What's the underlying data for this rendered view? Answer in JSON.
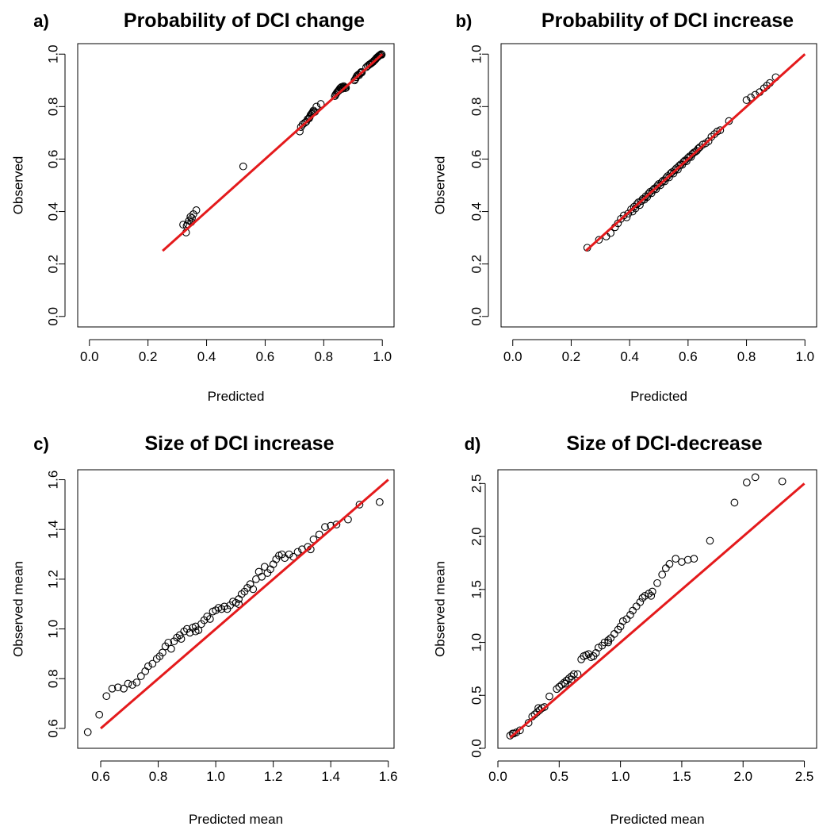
{
  "chart_data": [
    {
      "id": "a",
      "letter": "a)",
      "type": "scatter",
      "title": "Probability of DCI change",
      "xlabel": "Predicted",
      "ylabel": "Observed",
      "xlim": [
        -0.04,
        1.04
      ],
      "ylim": [
        -0.04,
        1.04
      ],
      "xticks": [
        "0.0",
        "0.2",
        "0.4",
        "0.6",
        "0.8",
        "1.0"
      ],
      "yticks": [
        "0.0",
        "0.2",
        "0.4",
        "0.6",
        "0.8",
        "1.0"
      ],
      "xtick_values": [
        0,
        0.2,
        0.4,
        0.6,
        0.8,
        1.0
      ],
      "ytick_values": [
        0,
        0.2,
        0.4,
        0.6,
        0.8,
        1.0
      ],
      "reference_line": {
        "from": [
          0.25,
          0.25
        ],
        "to": [
          1.0,
          1.0
        ],
        "color": "#e41a1c"
      },
      "points": [
        [
          0.32,
          0.35
        ],
        [
          0.33,
          0.32
        ],
        [
          0.332,
          0.345
        ],
        [
          0.335,
          0.352
        ],
        [
          0.34,
          0.365
        ],
        [
          0.345,
          0.38
        ],
        [
          0.35,
          0.375
        ],
        [
          0.355,
          0.39
        ],
        [
          0.348,
          0.36
        ],
        [
          0.365,
          0.405
        ],
        [
          0.525,
          0.572
        ],
        [
          0.718,
          0.705
        ],
        [
          0.722,
          0.722
        ],
        [
          0.728,
          0.732
        ],
        [
          0.735,
          0.738
        ],
        [
          0.74,
          0.742
        ],
        [
          0.745,
          0.752
        ],
        [
          0.75,
          0.755
        ],
        [
          0.752,
          0.76
        ],
        [
          0.755,
          0.768
        ],
        [
          0.758,
          0.772
        ],
        [
          0.76,
          0.775
        ],
        [
          0.763,
          0.78
        ],
        [
          0.765,
          0.785
        ],
        [
          0.77,
          0.78
        ],
        [
          0.775,
          0.8
        ],
        [
          0.79,
          0.81
        ],
        [
          0.838,
          0.84
        ],
        [
          0.84,
          0.845
        ],
        [
          0.843,
          0.85
        ],
        [
          0.846,
          0.855
        ],
        [
          0.848,
          0.858
        ],
        [
          0.851,
          0.86
        ],
        [
          0.853,
          0.865
        ],
        [
          0.856,
          0.87
        ],
        [
          0.858,
          0.872
        ],
        [
          0.861,
          0.875
        ],
        [
          0.863,
          0.868
        ],
        [
          0.866,
          0.872
        ],
        [
          0.868,
          0.878
        ],
        [
          0.871,
          0.875
        ],
        [
          0.873,
          0.87
        ],
        [
          0.876,
          0.872
        ],
        [
          0.905,
          0.9
        ],
        [
          0.908,
          0.905
        ],
        [
          0.911,
          0.912
        ],
        [
          0.914,
          0.918
        ],
        [
          0.918,
          0.922
        ],
        [
          0.921,
          0.92
        ],
        [
          0.925,
          0.928
        ],
        [
          0.928,
          0.932
        ],
        [
          0.93,
          0.93
        ],
        [
          0.945,
          0.95
        ],
        [
          0.95,
          0.955
        ],
        [
          0.955,
          0.96
        ],
        [
          0.958,
          0.962
        ],
        [
          0.962,
          0.965
        ],
        [
          0.965,
          0.968
        ],
        [
          0.968,
          0.97
        ],
        [
          0.972,
          0.975
        ],
        [
          0.975,
          0.978
        ],
        [
          0.978,
          0.982
        ],
        [
          0.98,
          0.985
        ],
        [
          0.983,
          0.988
        ],
        [
          0.985,
          0.99
        ],
        [
          0.988,
          0.993
        ],
        [
          0.99,
          0.995
        ],
        [
          0.993,
          0.997
        ],
        [
          0.996,
          1.0
        ],
        [
          0.998,
          0.998
        ]
      ]
    },
    {
      "id": "b",
      "letter": "b)",
      "type": "scatter",
      "title": "Probability of DCI increase",
      "xlabel": "Predicted",
      "ylabel": "Observed",
      "xlim": [
        -0.04,
        1.04
      ],
      "ylim": [
        -0.04,
        1.04
      ],
      "xticks": [
        "0.0",
        "0.2",
        "0.4",
        "0.6",
        "0.8",
        "1.0"
      ],
      "yticks": [
        "0.0",
        "0.2",
        "0.4",
        "0.6",
        "0.8",
        "1.0"
      ],
      "xtick_values": [
        0,
        0.2,
        0.4,
        0.6,
        0.8,
        1.0
      ],
      "ytick_values": [
        0,
        0.2,
        0.4,
        0.6,
        0.8,
        1.0
      ],
      "reference_line": {
        "from": [
          0.25,
          0.25
        ],
        "to": [
          1.0,
          1.0
        ],
        "color": "#e41a1c"
      },
      "points": [
        [
          0.255,
          0.262
        ],
        [
          0.295,
          0.292
        ],
        [
          0.32,
          0.305
        ],
        [
          0.335,
          0.318
        ],
        [
          0.35,
          0.34
        ],
        [
          0.36,
          0.355
        ],
        [
          0.37,
          0.372
        ],
        [
          0.38,
          0.385
        ],
        [
          0.39,
          0.378
        ],
        [
          0.395,
          0.392
        ],
        [
          0.405,
          0.408
        ],
        [
          0.41,
          0.4
        ],
        [
          0.415,
          0.418
        ],
        [
          0.42,
          0.412
        ],
        [
          0.425,
          0.428
        ],
        [
          0.43,
          0.435
        ],
        [
          0.435,
          0.425
        ],
        [
          0.44,
          0.44
        ],
        [
          0.445,
          0.448
        ],
        [
          0.45,
          0.445
        ],
        [
          0.455,
          0.458
        ],
        [
          0.46,
          0.455
        ],
        [
          0.465,
          0.468
        ],
        [
          0.47,
          0.475
        ],
        [
          0.475,
          0.47
        ],
        [
          0.48,
          0.482
        ],
        [
          0.485,
          0.488
        ],
        [
          0.49,
          0.485
        ],
        [
          0.495,
          0.498
        ],
        [
          0.5,
          0.505
        ],
        [
          0.505,
          0.5
        ],
        [
          0.51,
          0.512
        ],
        [
          0.515,
          0.518
        ],
        [
          0.52,
          0.515
        ],
        [
          0.525,
          0.528
        ],
        [
          0.53,
          0.535
        ],
        [
          0.535,
          0.53
        ],
        [
          0.54,
          0.545
        ],
        [
          0.545,
          0.55
        ],
        [
          0.55,
          0.545
        ],
        [
          0.555,
          0.558
        ],
        [
          0.56,
          0.565
        ],
        [
          0.565,
          0.56
        ],
        [
          0.57,
          0.575
        ],
        [
          0.575,
          0.58
        ],
        [
          0.58,
          0.578
        ],
        [
          0.585,
          0.59
        ],
        [
          0.59,
          0.595
        ],
        [
          0.595,
          0.592
        ],
        [
          0.6,
          0.605
        ],
        [
          0.605,
          0.61
        ],
        [
          0.61,
          0.608
        ],
        [
          0.615,
          0.62
        ],
        [
          0.62,
          0.625
        ],
        [
          0.625,
          0.628
        ],
        [
          0.63,
          0.632
        ],
        [
          0.635,
          0.64
        ],
        [
          0.64,
          0.645
        ],
        [
          0.65,
          0.655
        ],
        [
          0.66,
          0.66
        ],
        [
          0.67,
          0.668
        ],
        [
          0.68,
          0.685
        ],
        [
          0.69,
          0.695
        ],
        [
          0.7,
          0.705
        ],
        [
          0.71,
          0.71
        ],
        [
          0.74,
          0.745
        ],
        [
          0.8,
          0.825
        ],
        [
          0.815,
          0.835
        ],
        [
          0.83,
          0.845
        ],
        [
          0.845,
          0.855
        ],
        [
          0.86,
          0.87
        ],
        [
          0.87,
          0.88
        ],
        [
          0.88,
          0.89
        ],
        [
          0.9,
          0.912
        ]
      ]
    },
    {
      "id": "c",
      "letter": "c)",
      "type": "scatter",
      "title": "Size of DCI increase",
      "xlabel": "Predicted mean",
      "ylabel": "Observed mean",
      "xlim": [
        0.52,
        1.62
      ],
      "ylim": [
        0.52,
        1.64
      ],
      "xticks": [
        "0.6",
        "0.8",
        "1.0",
        "1.2",
        "1.4",
        "1.6"
      ],
      "yticks": [
        "0.6",
        "0.8",
        "1.0",
        "1.2",
        "1.4",
        "1.6"
      ],
      "xtick_values": [
        0.6,
        0.8,
        1.0,
        1.2,
        1.4,
        1.6
      ],
      "ytick_values": [
        0.6,
        0.8,
        1.0,
        1.2,
        1.4,
        1.6
      ],
      "reference_line": {
        "from": [
          0.6,
          0.6
        ],
        "to": [
          1.6,
          1.6
        ],
        "color": "#e41a1c"
      },
      "points": [
        [
          0.555,
          0.585
        ],
        [
          0.595,
          0.655
        ],
        [
          0.62,
          0.73
        ],
        [
          0.64,
          0.76
        ],
        [
          0.66,
          0.765
        ],
        [
          0.68,
          0.76
        ],
        [
          0.695,
          0.78
        ],
        [
          0.71,
          0.775
        ],
        [
          0.725,
          0.785
        ],
        [
          0.74,
          0.81
        ],
        [
          0.755,
          0.83
        ],
        [
          0.765,
          0.85
        ],
        [
          0.78,
          0.86
        ],
        [
          0.795,
          0.88
        ],
        [
          0.805,
          0.89
        ],
        [
          0.815,
          0.905
        ],
        [
          0.825,
          0.93
        ],
        [
          0.835,
          0.945
        ],
        [
          0.845,
          0.92
        ],
        [
          0.855,
          0.95
        ],
        [
          0.865,
          0.965
        ],
        [
          0.875,
          0.975
        ],
        [
          0.88,
          0.96
        ],
        [
          0.89,
          0.99
        ],
        [
          0.9,
          1.0
        ],
        [
          0.91,
          0.985
        ],
        [
          0.92,
          1.005
        ],
        [
          0.93,
          1.01
        ],
        [
          0.94,
          0.995
        ],
        [
          0.95,
          1.02
        ],
        [
          0.96,
          1.035
        ],
        [
          0.97,
          1.05
        ],
        [
          0.98,
          1.04
        ],
        [
          0.99,
          1.07
        ],
        [
          1.0,
          1.075
        ],
        [
          1.01,
          1.085
        ],
        [
          1.02,
          1.08
        ],
        [
          1.03,
          1.09
        ],
        [
          1.04,
          1.08
        ],
        [
          1.05,
          1.095
        ],
        [
          1.06,
          1.11
        ],
        [
          1.07,
          1.105
        ],
        [
          1.08,
          1.12
        ],
        [
          1.09,
          1.14
        ],
        [
          1.1,
          1.15
        ],
        [
          1.11,
          1.165
        ],
        [
          1.12,
          1.18
        ],
        [
          1.13,
          1.16
        ],
        [
          1.14,
          1.2
        ],
        [
          1.15,
          1.23
        ],
        [
          1.16,
          1.21
        ],
        [
          1.17,
          1.25
        ],
        [
          1.18,
          1.225
        ],
        [
          1.19,
          1.24
        ],
        [
          1.2,
          1.26
        ],
        [
          1.21,
          1.28
        ],
        [
          1.22,
          1.295
        ],
        [
          1.23,
          1.3
        ],
        [
          1.24,
          1.285
        ],
        [
          1.255,
          1.3
        ],
        [
          1.27,
          1.29
        ],
        [
          1.285,
          1.31
        ],
        [
          1.3,
          1.32
        ],
        [
          1.32,
          1.33
        ],
        [
          1.34,
          1.36
        ],
        [
          1.36,
          1.38
        ],
        [
          1.38,
          1.41
        ],
        [
          1.4,
          1.415
        ],
        [
          1.42,
          1.42
        ],
        [
          1.46,
          1.44
        ],
        [
          1.5,
          1.5
        ],
        [
          1.57,
          1.51
        ],
        [
          1.33,
          1.32
        ],
        [
          1.08,
          1.1
        ],
        [
          0.93,
          0.99
        ]
      ]
    },
    {
      "id": "d",
      "letter": "d)",
      "type": "scatter",
      "title": "Size of DCI-decrease",
      "xlabel": "Predicted mean",
      "ylabel": "Observed mean",
      "xlim": [
        0.0,
        2.6
      ],
      "ylim": [
        0.0,
        2.63
      ],
      "xticks": [
        "0.0",
        "0.5",
        "1.0",
        "1.5",
        "2.0",
        "2.5"
      ],
      "yticks": [
        "0.0",
        "0.5",
        "1.0",
        "1.5",
        "2.0",
        "2.5"
      ],
      "xtick_values": [
        0,
        0.5,
        1.0,
        1.5,
        2.0,
        2.5
      ],
      "ytick_values": [
        0,
        0.5,
        1.0,
        1.5,
        2.0,
        2.5
      ],
      "reference_line": {
        "from": [
          0.1,
          0.1
        ],
        "to": [
          2.5,
          2.5
        ],
        "color": "#e41a1c"
      },
      "points": [
        [
          0.1,
          0.12
        ],
        [
          0.13,
          0.14
        ],
        [
          0.15,
          0.15
        ],
        [
          0.18,
          0.17
        ],
        [
          0.25,
          0.24
        ],
        [
          0.28,
          0.3
        ],
        [
          0.3,
          0.32
        ],
        [
          0.32,
          0.34
        ],
        [
          0.34,
          0.36
        ],
        [
          0.36,
          0.38
        ],
        [
          0.38,
          0.39
        ],
        [
          0.42,
          0.49
        ],
        [
          0.48,
          0.56
        ],
        [
          0.5,
          0.58
        ],
        [
          0.52,
          0.6
        ],
        [
          0.54,
          0.62
        ],
        [
          0.56,
          0.64
        ],
        [
          0.58,
          0.66
        ],
        [
          0.6,
          0.68
        ],
        [
          0.62,
          0.7
        ],
        [
          0.65,
          0.7
        ],
        [
          0.68,
          0.84
        ],
        [
          0.7,
          0.87
        ],
        [
          0.72,
          0.88
        ],
        [
          0.74,
          0.89
        ],
        [
          0.76,
          0.86
        ],
        [
          0.78,
          0.87
        ],
        [
          0.8,
          0.9
        ],
        [
          0.82,
          0.95
        ],
        [
          0.85,
          0.97
        ],
        [
          0.87,
          1.0
        ],
        [
          0.9,
          1.02
        ],
        [
          0.92,
          1.04
        ],
        [
          0.95,
          1.08
        ],
        [
          0.98,
          1.12
        ],
        [
          1.0,
          1.15
        ],
        [
          1.02,
          1.2
        ],
        [
          1.05,
          1.22
        ],
        [
          1.08,
          1.26
        ],
        [
          1.1,
          1.3
        ],
        [
          1.13,
          1.34
        ],
        [
          1.16,
          1.38
        ],
        [
          1.18,
          1.42
        ],
        [
          1.2,
          1.44
        ],
        [
          1.23,
          1.46
        ],
        [
          1.26,
          1.48
        ],
        [
          1.3,
          1.56
        ],
        [
          1.34,
          1.64
        ],
        [
          1.37,
          1.7
        ],
        [
          1.4,
          1.74
        ],
        [
          1.45,
          1.79
        ],
        [
          1.5,
          1.76
        ],
        [
          1.55,
          1.78
        ],
        [
          1.6,
          1.79
        ],
        [
          1.73,
          1.96
        ],
        [
          1.93,
          2.32
        ],
        [
          2.03,
          2.51
        ],
        [
          2.1,
          2.56
        ],
        [
          2.32,
          2.52
        ],
        [
          0.55,
          0.61
        ],
        [
          0.6,
          0.65
        ],
        [
          0.9,
          1.0
        ],
        [
          1.25,
          1.44
        ],
        [
          0.33,
          0.38
        ],
        [
          0.12,
          0.14
        ]
      ]
    }
  ]
}
